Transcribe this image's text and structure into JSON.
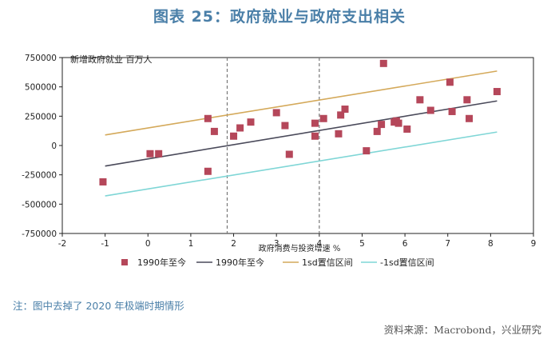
{
  "header": {
    "title": "图表 25：政府就业与政府支出相关"
  },
  "chart_data": {
    "type": "scatter",
    "title": "图表 25：政府就业与政府支出相关",
    "ylabel": "新增政府就业 百万人",
    "xlabel": "政府消费与投资增速 %",
    "xlim": [
      -2,
      9
    ],
    "ylim": [
      -750000,
      750000
    ],
    "x_ticks": [
      "-2",
      "-1",
      "0",
      "1",
      "2",
      "3",
      "4",
      "5",
      "6",
      "7",
      "8",
      "9"
    ],
    "y_ticks": [
      "750000",
      "500000",
      "250000",
      "0",
      "-250000",
      "-500000",
      "-750000"
    ],
    "vlines": [
      1.85,
      4.0
    ],
    "series": [
      {
        "name": "1990年至今",
        "kind": "scatter",
        "color": "#b5475a",
        "x": [
          -1.05,
          0.05,
          0.25,
          1.4,
          1.4,
          1.55,
          2.0,
          2.15,
          2.4,
          3.0,
          3.2,
          3.3,
          3.9,
          3.9,
          4.1,
          4.45,
          4.5,
          4.6,
          5.1,
          5.35,
          5.45,
          5.5,
          5.75,
          5.8,
          5.85,
          6.05,
          6.35,
          6.6,
          7.05,
          7.1,
          7.45,
          7.5,
          8.15
        ],
        "y": [
          -310000,
          -70000,
          -70000,
          230000,
          -220000,
          120000,
          80000,
          150000,
          200000,
          280000,
          170000,
          -75000,
          80000,
          190000,
          230000,
          100000,
          260000,
          310000,
          -45000,
          120000,
          180000,
          700000,
          200000,
          210000,
          190000,
          140000,
          390000,
          300000,
          540000,
          290000,
          390000,
          230000,
          460000
        ]
      },
      {
        "name": "1990年至今",
        "kind": "line",
        "color": "#4a4a5a",
        "x": [
          -1,
          8.15
        ],
        "y": [
          -175000,
          380000
        ]
      },
      {
        "name": "1sd置信区间",
        "kind": "line",
        "color": "#d4a95a",
        "x": [
          -1,
          8.15
        ],
        "y": [
          90000,
          635000
        ]
      },
      {
        "name": "-1sd置信区间",
        "kind": "line",
        "color": "#7fd6d6",
        "x": [
          -1,
          8.15
        ],
        "y": [
          -430000,
          115000
        ]
      }
    ],
    "legend_position": "bottom"
  },
  "footer": {
    "note": "注：图中去掉了 2020 年极端时期情形",
    "source": "资料来源：Macrobond，兴业研究"
  }
}
